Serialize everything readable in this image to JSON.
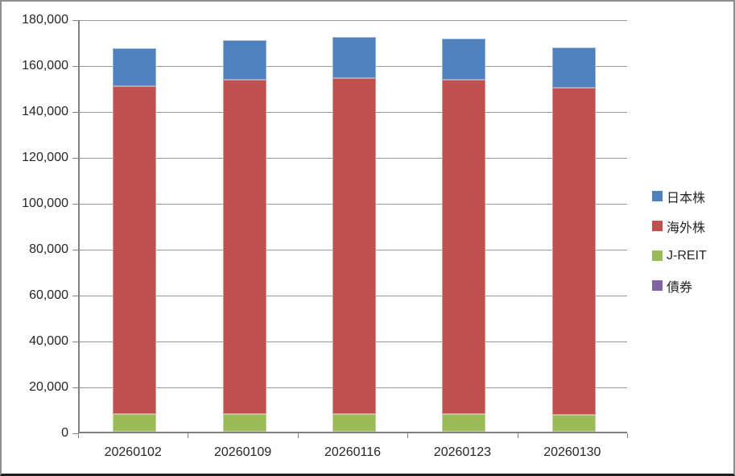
{
  "chart_data": {
    "type": "bar",
    "variant": "stacked-column",
    "title": "",
    "xlabel": "",
    "ylabel": "",
    "categories": [
      "20260102",
      "20260109",
      "20260116",
      "20260123",
      "20260130"
    ],
    "series": [
      {
        "name": "日本株",
        "color": "#4F81BD",
        "border_color": "#95B3D7",
        "values": [
          16700,
          17300,
          17800,
          17900,
          17400
        ]
      },
      {
        "name": "海外株",
        "color": "#C0504D",
        "border_color": "#D99694",
        "values": [
          142700,
          145400,
          146300,
          145700,
          142400
        ]
      },
      {
        "name": "J-REIT",
        "color": "#9BBB59",
        "border_color": "#C3D69B",
        "values": [
          7800,
          7900,
          7900,
          7800,
          7500
        ]
      },
      {
        "name": "債券",
        "color": "#8064A2",
        "border_color": "#B3A2C7",
        "values": [
          0,
          0,
          0,
          0,
          0
        ]
      }
    ],
    "stack_order_bottom_to_top": [
      "債券",
      "J-REIT",
      "海外株",
      "日本株"
    ],
    "stack_totals": [
      167200,
      170600,
      172000,
      171400,
      167300
    ],
    "ylim": [
      0,
      180000
    ],
    "ytick_step": 20000,
    "ytick_labels": [
      "0",
      "20,000",
      "40,000",
      "60,000",
      "80,000",
      "100,000",
      "120,000",
      "140,000",
      "160,000",
      "180,000"
    ],
    "grid": true,
    "gridline_color": "#989898",
    "axis_line_color": "#808080",
    "legend_position": "right",
    "legend_items": [
      {
        "label": "日本株",
        "color": "#4F81BD"
      },
      {
        "label": "海外株",
        "color": "#C0504D"
      },
      {
        "label": "J-REIT",
        "color": "#9BBB59"
      },
      {
        "label": "債券",
        "color": "#8064A2"
      }
    ]
  }
}
